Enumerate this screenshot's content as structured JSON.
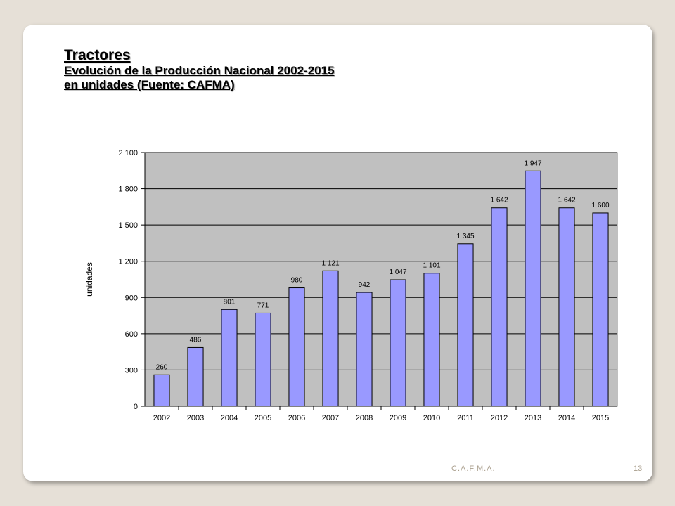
{
  "slide": {
    "title": "Tractores",
    "subtitle": "Evolución de la Producción Nacional 2002-2015",
    "subtitle2": "en unidades (Fuente: CAFMA)",
    "footer": "C.A.F.M.A.",
    "page_number": "13"
  },
  "chart_data": {
    "type": "bar",
    "categories": [
      "2002",
      "2003",
      "2004",
      "2005",
      "2006",
      "2007",
      "2008",
      "2009",
      "2010",
      "2011",
      "2012",
      "2013",
      "2014",
      "2015"
    ],
    "values": [
      260,
      486,
      801,
      771,
      980,
      1121,
      942,
      1047,
      1101,
      1345,
      1642,
      1947,
      1642,
      1600
    ],
    "value_labels": [
      "260",
      "486",
      "801",
      "771",
      "980",
      "1 121",
      "942",
      "1 047",
      "1 101",
      "1 345",
      "1 642",
      "1 947",
      "1 642",
      "1 600"
    ],
    "ylabel": "unidades",
    "ylim": [
      0,
      2100
    ],
    "yticks": [
      0,
      300,
      600,
      900,
      1200,
      1500,
      1800,
      2100
    ],
    "ytick_labels": [
      "0",
      "300",
      "600",
      "900",
      "1 200",
      "1 500",
      "1 800",
      "2 100"
    ],
    "grid": true,
    "legend": false,
    "colors": {
      "bar": "#9999ff",
      "plot_bg": "#c0c0c0",
      "bar_edge": "#000000"
    }
  }
}
